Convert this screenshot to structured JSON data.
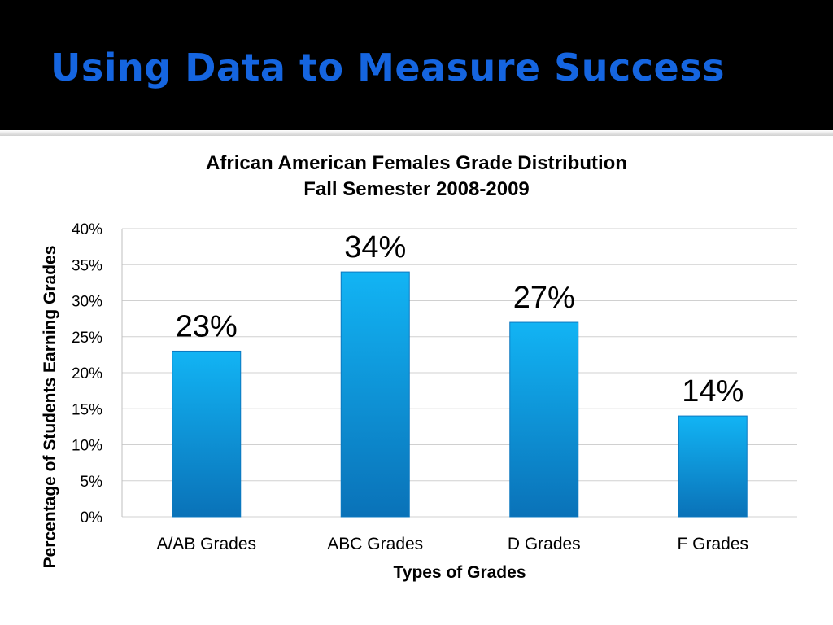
{
  "slide": {
    "title": "Using Data to Measure Success"
  },
  "chart_data": {
    "type": "bar",
    "title": "African American Females Grade Distribution",
    "subtitle": "Fall Semester 2008-2009",
    "xlabel": "Types of Grades",
    "ylabel": "Percentage of Students Earning Grades",
    "categories": [
      "A/AB Grades",
      "ABC Grades",
      "D Grades",
      "F Grades"
    ],
    "values": [
      23,
      34,
      27,
      14
    ],
    "data_labels": [
      "23%",
      "34%",
      "27%",
      "14%"
    ],
    "yticks": [
      "0%",
      "5%",
      "10%",
      "15%",
      "20%",
      "25%",
      "30%",
      "35%",
      "40%"
    ],
    "ylim": [
      0,
      40
    ],
    "grid": true,
    "legend": "none",
    "colors": {
      "bar_top": "#12b4f4",
      "bar_bottom": "#0a72b8",
      "grid": "#d0d0d0",
      "title": "#1565e0"
    }
  }
}
